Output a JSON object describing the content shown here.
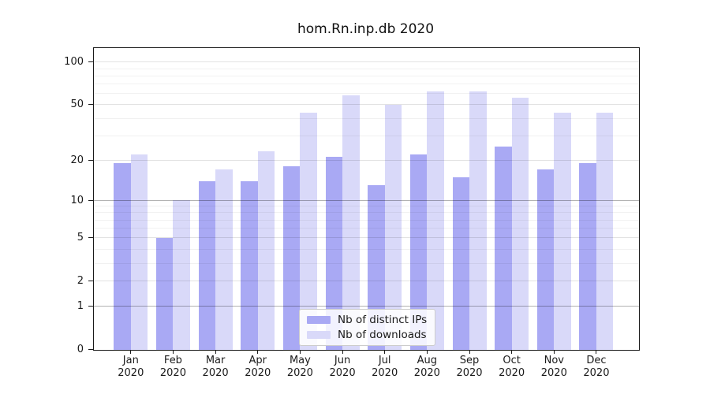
{
  "chart_data": {
    "type": "bar",
    "title": "hom.Rn.inp.db 2020",
    "categories": [
      "Jan 2020",
      "Feb 2020",
      "Mar 2020",
      "Apr 2020",
      "May 2020",
      "Jun 2020",
      "Jul 2020",
      "Aug 2020",
      "Sep 2020",
      "Oct 2020",
      "Nov 2020",
      "Dec 2020"
    ],
    "series": [
      {
        "name": "Nb of distinct IPs",
        "color": "#a9a9f4",
        "values": [
          19,
          5,
          14,
          14,
          18,
          21,
          13,
          22,
          15,
          25,
          17,
          19
        ]
      },
      {
        "name": "Nb of downloads",
        "color": "#d9d9f9",
        "values": [
          22,
          10,
          17,
          23,
          44,
          58,
          50,
          62,
          62,
          56,
          44,
          44
        ]
      }
    ],
    "y_axis": {
      "scale": "symlog",
      "ticks": [
        0,
        1,
        2,
        5,
        10,
        20,
        50,
        100
      ],
      "emphasized_ticks": [
        1,
        10
      ],
      "minor_gridlines": [
        3,
        4,
        6,
        7,
        8,
        9,
        30,
        40,
        60,
        70,
        80,
        90
      ]
    },
    "x_axis": {
      "label_line2": "2020"
    },
    "legend_position": "inside-bottom-center",
    "grid": true,
    "colors": {
      "spine": "#1a1a1a",
      "background": "#ffffff"
    }
  }
}
